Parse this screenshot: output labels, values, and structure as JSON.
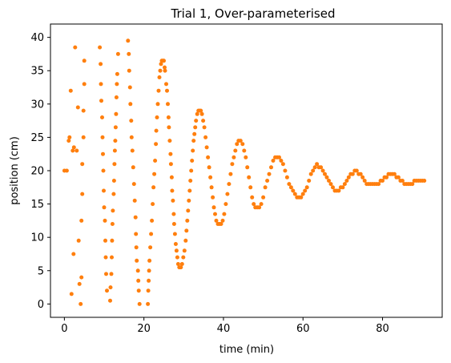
{
  "chart_data": {
    "type": "scatter",
    "title": "Trial 1, Over-parameterised",
    "xlabel": "time (min)",
    "ylabel": "position (cm)",
    "xlim": [
      -3.5,
      95
    ],
    "ylim": [
      -2,
      42
    ],
    "xticks": [
      "0",
      "20",
      "40",
      "60",
      "80"
    ],
    "yticks": [
      "0",
      "5",
      "10",
      "15",
      "20",
      "25",
      "30",
      "35",
      "40"
    ],
    "grid": false,
    "legend": "none",
    "marker_color": "#ff7f0e",
    "series": [
      {
        "points": [
          [
            0.0,
            20.0
          ],
          [
            0.6,
            20.0
          ],
          [
            1.1,
            24.5
          ],
          [
            1.3,
            25.0
          ],
          [
            1.6,
            32.0
          ],
          [
            2.1,
            23.0
          ],
          [
            2.4,
            23.5
          ],
          [
            2.7,
            38.5
          ],
          [
            1.8,
            1.5
          ],
          [
            2.3,
            7.5
          ],
          [
            3.1,
            23.0
          ],
          [
            3.4,
            29.5
          ],
          [
            3.6,
            9.5
          ],
          [
            3.8,
            3.0
          ],
          [
            4.1,
            0.0
          ],
          [
            4.3,
            4.0
          ],
          [
            4.3,
            12.5
          ],
          [
            4.5,
            16.5
          ],
          [
            4.5,
            21.0
          ],
          [
            4.8,
            25.0
          ],
          [
            4.8,
            29.0
          ],
          [
            5.0,
            33.0
          ],
          [
            5.0,
            36.5
          ],
          [
            8.9,
            38.5
          ],
          [
            9.1,
            36.0
          ],
          [
            9.2,
            33.0
          ],
          [
            9.3,
            30.5
          ],
          [
            9.5,
            28.0
          ],
          [
            9.6,
            25.0
          ],
          [
            9.7,
            22.5
          ],
          [
            9.8,
            20.0
          ],
          [
            9.9,
            17.0
          ],
          [
            10.0,
            14.5
          ],
          [
            10.2,
            12.5
          ],
          [
            10.3,
            9.5
          ],
          [
            10.4,
            7.0
          ],
          [
            10.5,
            4.5
          ],
          [
            10.7,
            2.0
          ],
          [
            11.5,
            0.5
          ],
          [
            11.6,
            2.5
          ],
          [
            11.8,
            4.5
          ],
          [
            11.9,
            7.0
          ],
          [
            12.0,
            9.5
          ],
          [
            12.1,
            12.0
          ],
          [
            12.2,
            14.0
          ],
          [
            12.4,
            16.5
          ],
          [
            12.5,
            18.5
          ],
          [
            12.6,
            21.0
          ],
          [
            12.7,
            23.0
          ],
          [
            12.8,
            24.5
          ],
          [
            12.9,
            26.5
          ],
          [
            13.0,
            28.5
          ],
          [
            13.1,
            31.0
          ],
          [
            13.2,
            33.0
          ],
          [
            13.3,
            34.5
          ],
          [
            13.5,
            37.5
          ],
          [
            16.0,
            39.5
          ],
          [
            16.2,
            37.5
          ],
          [
            16.3,
            35.0
          ],
          [
            16.5,
            32.5
          ],
          [
            16.6,
            30.0
          ],
          [
            16.8,
            27.5
          ],
          [
            16.9,
            25.0
          ],
          [
            17.1,
            23.0
          ],
          [
            17.3,
            20.5
          ],
          [
            17.5,
            18.0
          ],
          [
            17.7,
            15.5
          ],
          [
            17.9,
            13.0
          ],
          [
            18.0,
            10.5
          ],
          [
            18.1,
            8.5
          ],
          [
            18.2,
            6.5
          ],
          [
            18.5,
            5.0
          ],
          [
            18.6,
            3.5
          ],
          [
            18.7,
            2.0
          ],
          [
            18.9,
            0.0
          ],
          [
            21.0,
            0.0
          ],
          [
            21.1,
            2.0
          ],
          [
            21.2,
            3.5
          ],
          [
            21.3,
            5.0
          ],
          [
            21.4,
            6.5
          ],
          [
            21.6,
            8.5
          ],
          [
            21.8,
            10.5
          ],
          [
            22.0,
            12.5
          ],
          [
            22.2,
            15.0
          ],
          [
            22.4,
            17.5
          ],
          [
            22.6,
            19.5
          ],
          [
            22.8,
            21.5
          ],
          [
            23.0,
            24.0
          ],
          [
            23.1,
            26.0
          ],
          [
            23.3,
            28.0
          ],
          [
            23.5,
            30.0
          ],
          [
            23.7,
            32.0
          ],
          [
            23.9,
            34.0
          ],
          [
            24.1,
            35.0
          ],
          [
            24.3,
            36.0
          ],
          [
            24.5,
            36.5
          ],
          [
            24.8,
            36.5
          ],
          [
            25.0,
            36.5
          ],
          [
            25.2,
            35.5
          ],
          [
            25.3,
            35.0
          ],
          [
            25.6,
            33.0
          ],
          [
            25.8,
            32.0
          ],
          [
            26.0,
            30.0
          ],
          [
            26.2,
            28.0
          ],
          [
            26.3,
            26.5
          ],
          [
            26.5,
            24.5
          ],
          [
            26.7,
            22.5
          ],
          [
            26.8,
            21.0
          ],
          [
            27.0,
            19.0
          ],
          [
            27.1,
            17.0
          ],
          [
            27.3,
            15.5
          ],
          [
            27.5,
            13.5
          ],
          [
            27.6,
            12.0
          ],
          [
            27.8,
            10.5
          ],
          [
            28.0,
            9.0
          ],
          [
            28.2,
            8.0
          ],
          [
            28.4,
            7.0
          ],
          [
            28.6,
            6.0
          ],
          [
            28.9,
            5.5
          ],
          [
            29.3,
            5.5
          ],
          [
            29.6,
            6.0
          ],
          [
            29.9,
            7.0
          ],
          [
            30.2,
            8.0
          ],
          [
            30.5,
            9.5
          ],
          [
            30.7,
            11.0
          ],
          [
            30.9,
            12.5
          ],
          [
            31.1,
            14.0
          ],
          [
            31.3,
            15.5
          ],
          [
            31.5,
            17.0
          ],
          [
            31.7,
            18.5
          ],
          [
            31.9,
            20.0
          ],
          [
            32.1,
            21.5
          ],
          [
            32.3,
            23.0
          ],
          [
            32.5,
            24.5
          ],
          [
            32.7,
            25.5
          ],
          [
            32.9,
            26.5
          ],
          [
            33.1,
            27.5
          ],
          [
            33.4,
            28.5
          ],
          [
            33.7,
            29.0
          ],
          [
            34.0,
            29.0
          ],
          [
            34.3,
            29.0
          ],
          [
            34.6,
            28.5
          ],
          [
            34.9,
            27.5
          ],
          [
            35.2,
            26.5
          ],
          [
            35.5,
            25.0
          ],
          [
            35.8,
            23.5
          ],
          [
            36.1,
            22.0
          ],
          [
            36.4,
            20.5
          ],
          [
            36.7,
            19.0
          ],
          [
            37.0,
            17.5
          ],
          [
            37.3,
            16.0
          ],
          [
            37.6,
            14.5
          ],
          [
            37.9,
            13.5
          ],
          [
            38.2,
            12.5
          ],
          [
            38.6,
            12.0
          ],
          [
            39.0,
            12.0
          ],
          [
            39.4,
            12.0
          ],
          [
            39.8,
            12.5
          ],
          [
            40.2,
            13.5
          ],
          [
            40.6,
            15.0
          ],
          [
            41.0,
            16.5
          ],
          [
            41.4,
            18.0
          ],
          [
            41.8,
            19.5
          ],
          [
            42.2,
            21.0
          ],
          [
            42.6,
            22.0
          ],
          [
            43.0,
            23.0
          ],
          [
            43.4,
            24.0
          ],
          [
            43.8,
            24.5
          ],
          [
            44.3,
            24.5
          ],
          [
            44.8,
            24.0
          ],
          [
            45.2,
            23.0
          ],
          [
            45.6,
            22.0
          ],
          [
            46.0,
            20.5
          ],
          [
            46.4,
            19.0
          ],
          [
            46.8,
            17.5
          ],
          [
            47.2,
            16.0
          ],
          [
            47.6,
            15.0
          ],
          [
            48.0,
            14.5
          ],
          [
            48.5,
            14.5
          ],
          [
            49.0,
            14.5
          ],
          [
            49.5,
            15.0
          ],
          [
            50.0,
            16.0
          ],
          [
            50.5,
            17.5
          ],
          [
            51.0,
            18.5
          ],
          [
            51.5,
            19.5
          ],
          [
            52.0,
            20.5
          ],
          [
            52.5,
            21.5
          ],
          [
            53.0,
            22.0
          ],
          [
            53.5,
            22.0
          ],
          [
            54.0,
            22.0
          ],
          [
            54.5,
            21.5
          ],
          [
            55.0,
            21.0
          ],
          [
            55.5,
            20.0
          ],
          [
            56.0,
            19.0
          ],
          [
            56.5,
            18.0
          ],
          [
            57.0,
            17.5
          ],
          [
            57.5,
            17.0
          ],
          [
            58.0,
            16.5
          ],
          [
            58.5,
            16.0
          ],
          [
            59.0,
            16.0
          ],
          [
            59.5,
            16.0
          ],
          [
            60.0,
            16.5
          ],
          [
            60.5,
            17.0
          ],
          [
            61.0,
            17.5
          ],
          [
            61.5,
            18.5
          ],
          [
            62.0,
            19.5
          ],
          [
            62.5,
            20.0
          ],
          [
            63.0,
            20.5
          ],
          [
            63.5,
            21.0
          ],
          [
            64.0,
            20.5
          ],
          [
            64.5,
            20.5
          ],
          [
            65.0,
            20.0
          ],
          [
            65.5,
            19.5
          ],
          [
            66.0,
            19.0
          ],
          [
            66.5,
            18.5
          ],
          [
            67.0,
            18.0
          ],
          [
            67.5,
            17.5
          ],
          [
            68.0,
            17.0
          ],
          [
            68.5,
            17.0
          ],
          [
            69.0,
            17.0
          ],
          [
            69.5,
            17.5
          ],
          [
            70.0,
            17.5
          ],
          [
            70.5,
            18.0
          ],
          [
            71.0,
            18.5
          ],
          [
            71.5,
            19.0
          ],
          [
            72.0,
            19.5
          ],
          [
            72.5,
            19.5
          ],
          [
            73.0,
            20.0
          ],
          [
            73.5,
            20.0
          ],
          [
            74.0,
            19.5
          ],
          [
            74.5,
            19.5
          ],
          [
            75.0,
            19.0
          ],
          [
            75.5,
            18.5
          ],
          [
            76.0,
            18.0
          ],
          [
            76.5,
            18.0
          ],
          [
            77.0,
            18.0
          ],
          [
            77.5,
            18.0
          ],
          [
            78.0,
            18.0
          ],
          [
            78.5,
            18.0
          ],
          [
            79.0,
            18.0
          ],
          [
            79.5,
            18.5
          ],
          [
            80.0,
            18.5
          ],
          [
            80.5,
            19.0
          ],
          [
            81.0,
            19.0
          ],
          [
            81.5,
            19.5
          ],
          [
            82.0,
            19.5
          ],
          [
            82.5,
            19.5
          ],
          [
            83.0,
            19.5
          ],
          [
            83.5,
            19.0
          ],
          [
            84.0,
            19.0
          ],
          [
            84.5,
            18.5
          ],
          [
            85.0,
            18.5
          ],
          [
            85.5,
            18.0
          ],
          [
            86.0,
            18.0
          ],
          [
            86.5,
            18.0
          ],
          [
            87.0,
            18.0
          ],
          [
            87.5,
            18.0
          ],
          [
            88.0,
            18.5
          ],
          [
            88.5,
            18.5
          ],
          [
            89.0,
            18.5
          ],
          [
            89.5,
            18.5
          ],
          [
            90.0,
            18.5
          ],
          [
            90.5,
            18.5
          ]
        ]
      }
    ]
  }
}
